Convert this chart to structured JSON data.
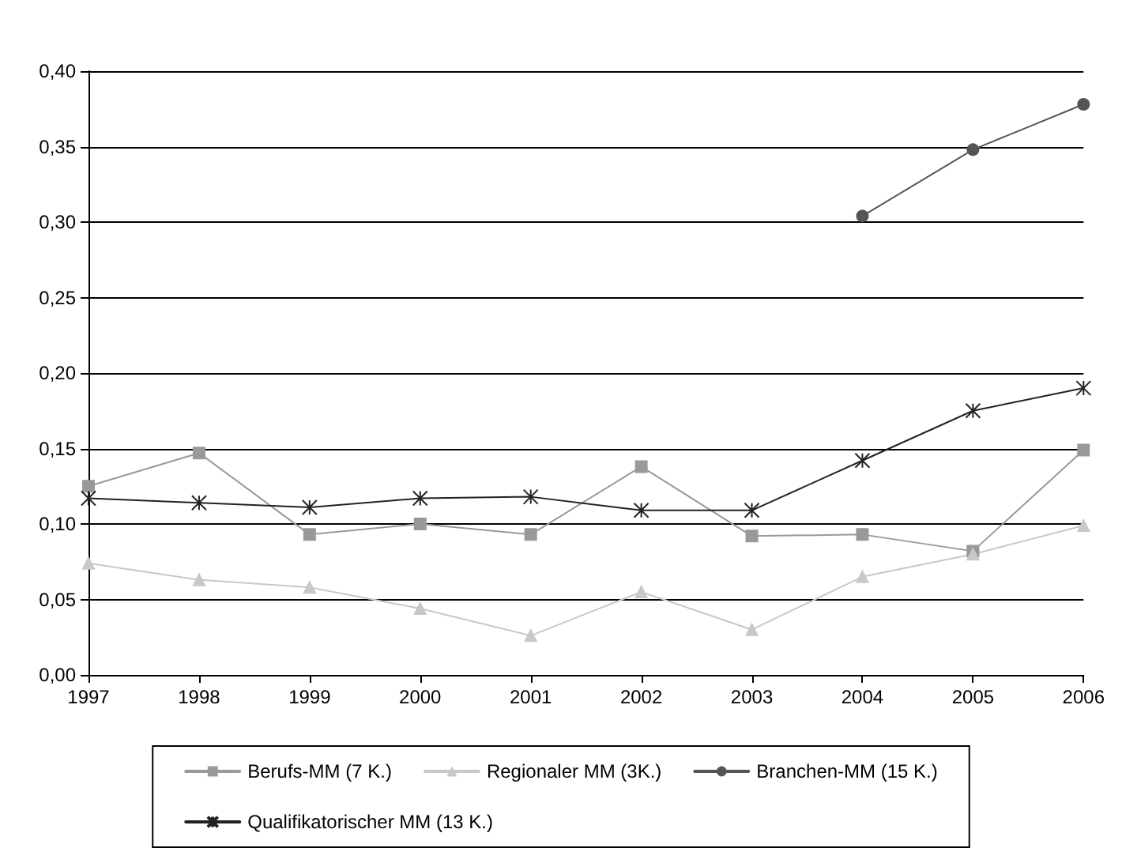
{
  "chart_data": {
    "type": "line",
    "categories": [
      "1997",
      "1998",
      "1999",
      "2000",
      "2001",
      "2002",
      "2003",
      "2004",
      "2005",
      "2006"
    ],
    "series": [
      {
        "name": "Berufs-MM (7 K.)",
        "color": "#999999",
        "marker": "square",
        "values": [
          0.125,
          0.147,
          0.093,
          0.1,
          0.093,
          0.138,
          0.092,
          0.093,
          0.082,
          0.149
        ]
      },
      {
        "name": "Regionaler MM (3K.)",
        "color": "#c8c8c8",
        "marker": "triangle",
        "values": [
          0.074,
          0.063,
          0.058,
          0.044,
          0.026,
          0.055,
          0.03,
          0.065,
          0.08,
          0.099
        ]
      },
      {
        "name": "Branchen-MM (15 K.)",
        "color": "#555555",
        "marker": "circle",
        "values": [
          null,
          null,
          null,
          null,
          null,
          null,
          null,
          0.304,
          0.348,
          0.378
        ]
      },
      {
        "name": "Qualifikatorischer MM (13 K.)",
        "color": "#222222",
        "marker": "cross",
        "values": [
          0.117,
          0.114,
          0.111,
          0.117,
          0.118,
          0.109,
          0.109,
          0.142,
          0.175,
          0.19
        ]
      }
    ],
    "ylim": [
      0,
      0.4
    ],
    "yticks": [
      {
        "value": 0,
        "label": "0,00"
      },
      {
        "value": 0.05,
        "label": "0,05"
      },
      {
        "value": 0.1,
        "label": "0,10"
      },
      {
        "value": 0.15,
        "label": "0,15"
      },
      {
        "value": 0.2,
        "label": "0,20"
      },
      {
        "value": 0.25,
        "label": "0,25"
      },
      {
        "value": 0.3,
        "label": "0,30"
      },
      {
        "value": 0.35,
        "label": "0,35"
      },
      {
        "value": 0.4,
        "label": "0,40"
      }
    ],
    "grid": "y",
    "legend": "bottom",
    "line_style": "solid"
  }
}
